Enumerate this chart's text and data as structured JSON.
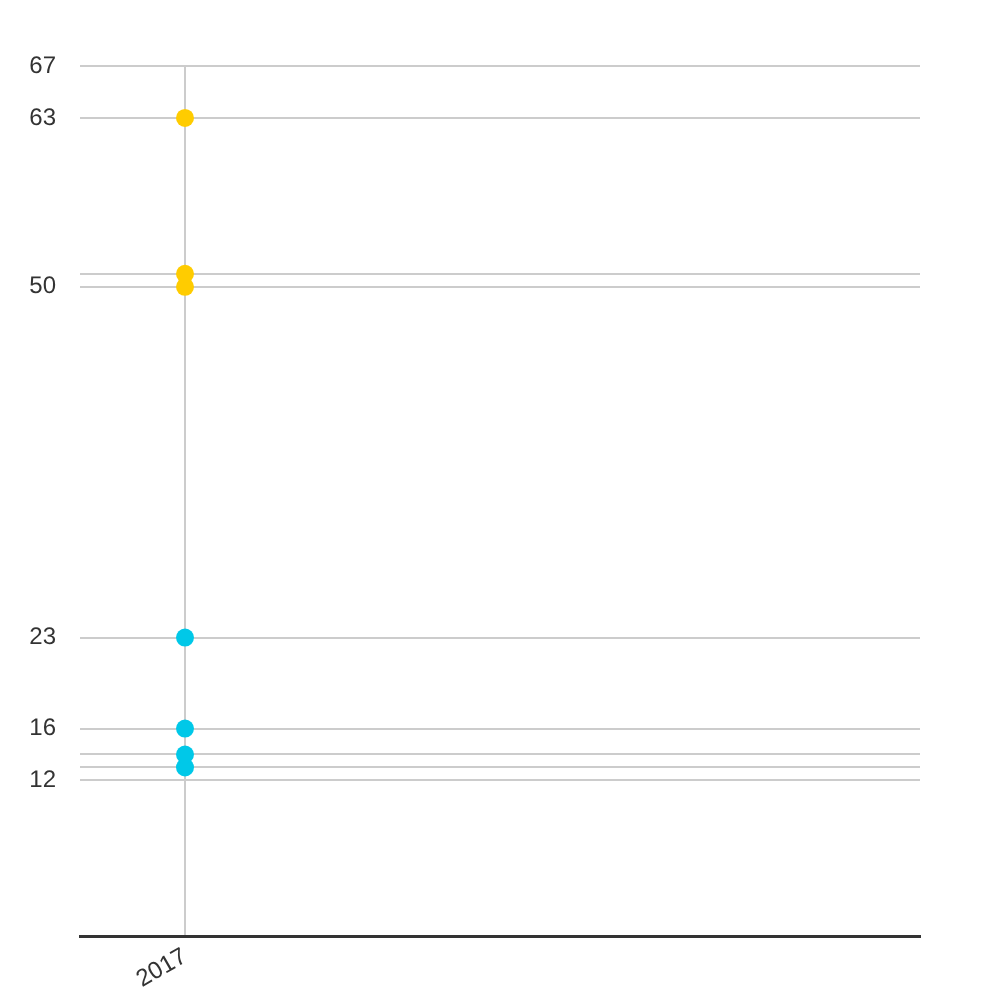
{
  "chart_data": {
    "type": "scatter",
    "categories": [
      "2017",
      null,
      null,
      null
    ],
    "series": [
      {
        "color": "#ffcc00",
        "values": [
          63,
          null,
          null,
          null
        ]
      },
      {
        "color": "#ffcc00",
        "values": [
          51,
          null,
          null,
          null
        ]
      },
      {
        "color": "#ffcc00",
        "values": [
          50,
          null,
          null,
          null
        ]
      },
      {
        "color": "#00c8e8",
        "values": [
          23,
          null,
          null,
          null
        ]
      },
      {
        "color": "#00c8e8",
        "values": [
          16,
          null,
          null,
          null
        ]
      },
      {
        "color": "#00c8e8",
        "values": [
          14,
          null,
          null,
          null
        ]
      },
      {
        "color": "#00c8e8",
        "values": [
          13,
          null,
          null,
          null
        ]
      }
    ],
    "ylim": [
      0,
      67
    ],
    "yticks": [
      12,
      {
        "value": 13,
        "label": null
      },
      {
        "value": 14,
        "label": null
      },
      16,
      23,
      50,
      {
        "value": 51,
        "label": null
      },
      63,
      67
    ],
    "grid": true,
    "legend": false,
    "marker": "circle"
  }
}
